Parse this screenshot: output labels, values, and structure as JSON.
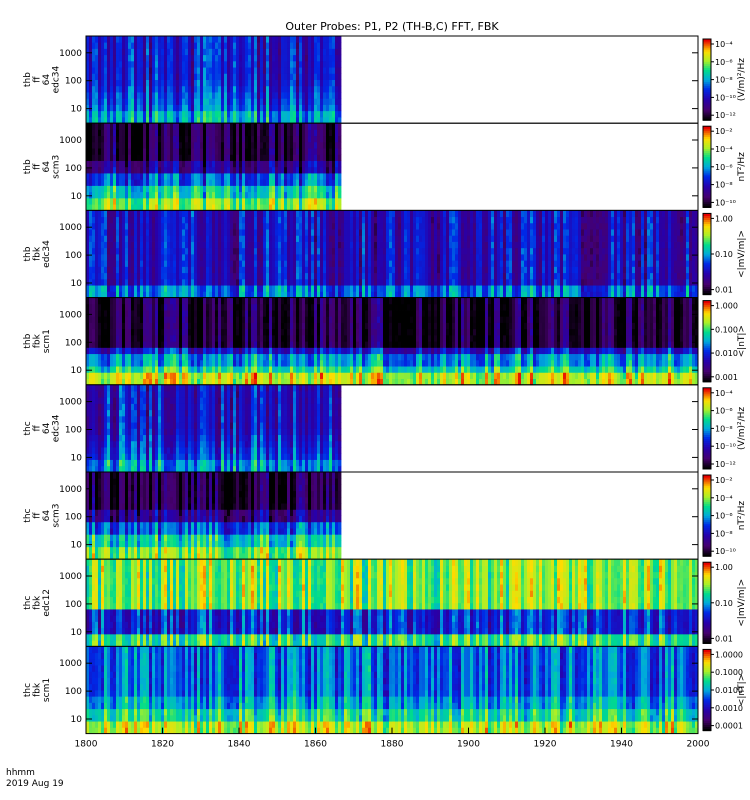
{
  "title": "Outer Probes: P1, P2 (TH-B,C) FFT, FBK",
  "footer": {
    "line1": "hhmm",
    "line2": "2019 Aug 19"
  },
  "chart_data": {
    "type": "heatmap",
    "title": "Outer Probes: P1, P2 (TH-B,C) FFT, FBK",
    "x_axis": {
      "range": [
        "18:00",
        "20:00"
      ],
      "tick_labels": [
        "1800",
        "1820",
        "1840",
        "1860",
        "1880",
        "1900",
        "1920",
        "1940",
        "2000"
      ],
      "label": "hhmm",
      "date": "2019 Aug 19"
    },
    "panels": [
      {
        "ylabel": [
          "thb",
          "ff",
          "64",
          "edc34"
        ],
        "yscale": "log",
        "yticks": [
          "10",
          "100",
          "1000"
        ],
        "data_end": "18:50",
        "palette": "efft",
        "colorbar": {
          "label": "(V/m)²/Hz",
          "ticks": [
            "10⁻⁴",
            "10⁻⁶",
            "10⁻⁸",
            "10⁻¹⁰",
            "10⁻¹²"
          ]
        }
      },
      {
        "ylabel": [
          "thb",
          "ff",
          "64",
          "scm3"
        ],
        "yscale": "log",
        "yticks": [
          "10",
          "100",
          "1000"
        ],
        "data_end": "18:50",
        "palette": "scm",
        "colorbar": {
          "label": "nT²/Hz",
          "ticks": [
            "10⁻²",
            "10⁻⁴",
            "10⁻⁶",
            "10⁻⁸",
            "10⁻¹⁰"
          ]
        }
      },
      {
        "ylabel": [
          "thb",
          "fbk",
          "edc34"
        ],
        "yscale": "log",
        "yticks": [
          "10",
          "100",
          "1000"
        ],
        "data_end": "20:00",
        "palette": "fbke_b",
        "colorbar": {
          "label": "<|mV/m|>",
          "ticks": [
            "1.00",
            "0.10",
            "0.01"
          ]
        }
      },
      {
        "ylabel": [
          "thb",
          "fbk",
          "scm1"
        ],
        "yscale": "log",
        "yticks": [
          "10",
          "100",
          "1000"
        ],
        "data_end": "20:00",
        "palette": "fbkb_b",
        "colorbar": {
          "label": "<|nT|>",
          "ticks": [
            "1.000",
            "0.100",
            "0.010",
            "0.001"
          ]
        }
      },
      {
        "ylabel": [
          "thc",
          "ff",
          "64",
          "edc34"
        ],
        "yscale": "log",
        "yticks": [
          "10",
          "100",
          "1000"
        ],
        "data_end": "18:50",
        "palette": "efft",
        "colorbar": {
          "label": "(V/m)²/Hz",
          "ticks": [
            "10⁻⁴",
            "10⁻⁶",
            "10⁻⁸",
            "10⁻¹⁰",
            "10⁻¹²"
          ]
        }
      },
      {
        "ylabel": [
          "thc",
          "ff",
          "64",
          "scm3"
        ],
        "yscale": "log",
        "yticks": [
          "10",
          "100",
          "1000"
        ],
        "data_end": "18:50",
        "palette": "scm",
        "colorbar": {
          "label": "nT²/Hz",
          "ticks": [
            "10⁻²",
            "10⁻⁴",
            "10⁻⁶",
            "10⁻⁸",
            "10⁻¹⁰"
          ]
        }
      },
      {
        "ylabel": [
          "thc",
          "fbk",
          "edc12"
        ],
        "yscale": "log",
        "yticks": [
          "10",
          "100",
          "1000"
        ],
        "data_end": "20:00",
        "palette": "fbke_c",
        "colorbar": {
          "label": "<|mV/m|>",
          "ticks": [
            "1.00",
            "0.10",
            "0.01"
          ]
        }
      },
      {
        "ylabel": [
          "thc",
          "fbk",
          "scm1"
        ],
        "yscale": "log",
        "yticks": [
          "10",
          "100",
          "1000"
        ],
        "data_end": "20:00",
        "palette": "fbkb_c",
        "colorbar": {
          "label": "<|nT|>",
          "ticks": [
            "1.0000",
            "0.1000",
            "0.0100",
            "0.0010",
            "0.0001"
          ]
        }
      }
    ]
  }
}
